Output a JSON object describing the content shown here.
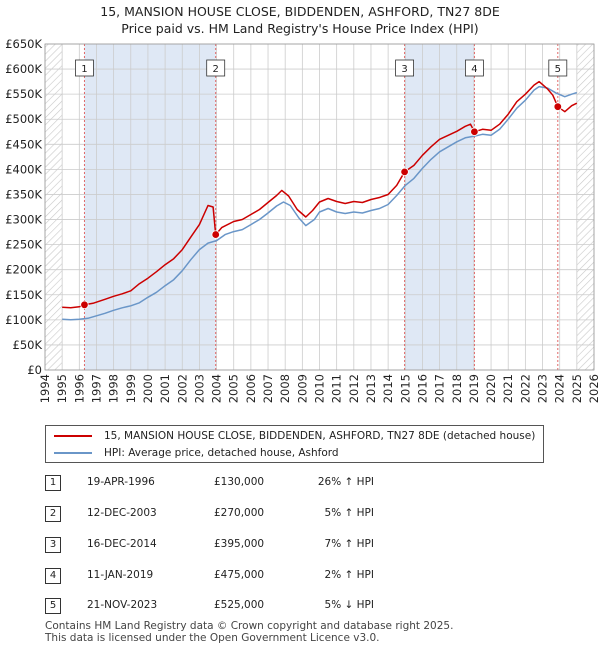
{
  "colors": {
    "property": "#cc0000",
    "hpi": "#6a96c8",
    "shade": "#dfe8f5",
    "grid": "#cccccc",
    "marker_line": "#e06666"
  },
  "title": {
    "line1": "15, MANSION HOUSE CLOSE, BIDDENDEN, ASHFORD, TN27 8DE",
    "line2": "Price paid vs. HM Land Registry's House Price Index (HPI)"
  },
  "chart_data": {
    "type": "line",
    "title": "15, MANSION HOUSE CLOSE, BIDDENDEN, ASHFORD, TN27 8DE",
    "subtitle": "Price paid vs. HM Land Registry's House Price Index (HPI)",
    "xlim": [
      1994,
      2026
    ],
    "ylim": [
      0,
      650000
    ],
    "grid": true,
    "x_ticks": [
      "1994",
      "1995",
      "1996",
      "1997",
      "1998",
      "1999",
      "2000",
      "2001",
      "2002",
      "2003",
      "2004",
      "2005",
      "2006",
      "2007",
      "2008",
      "2009",
      "2010",
      "2011",
      "2012",
      "2013",
      "2014",
      "2015",
      "2016",
      "2017",
      "2018",
      "2019",
      "2020",
      "2021",
      "2022",
      "2023",
      "2024",
      "2025",
      "2026"
    ],
    "y_ticks": [
      {
        "value": 0,
        "label": "£0"
      },
      {
        "value": 50000,
        "label": "£50K"
      },
      {
        "value": 100000,
        "label": "£100K"
      },
      {
        "value": 150000,
        "label": "£150K"
      },
      {
        "value": 200000,
        "label": "£200K"
      },
      {
        "value": 250000,
        "label": "£250K"
      },
      {
        "value": 300000,
        "label": "£300K"
      },
      {
        "value": 350000,
        "label": "£350K"
      },
      {
        "value": 400000,
        "label": "£400K"
      },
      {
        "value": 450000,
        "label": "£450K"
      },
      {
        "value": 500000,
        "label": "£500K"
      },
      {
        "value": 550000,
        "label": "£550K"
      },
      {
        "value": 600000,
        "label": "£600K"
      },
      {
        "value": 650000,
        "label": "£650K"
      }
    ],
    "legend_position": "below chart",
    "series": [
      {
        "name": "15, MANSION HOUSE CLOSE, BIDDENDEN, ASHFORD, TN27 8DE (detached house)",
        "points": [
          [
            1995.0,
            125000
          ],
          [
            1995.5,
            124000
          ],
          [
            1996.0,
            126000
          ],
          [
            1996.3,
            130000
          ],
          [
            1996.8,
            133000
          ],
          [
            1997.5,
            141000
          ],
          [
            1998.0,
            147000
          ],
          [
            1998.5,
            152000
          ],
          [
            1999.0,
            158000
          ],
          [
            1999.5,
            172000
          ],
          [
            2000.0,
            183000
          ],
          [
            2000.5,
            196000
          ],
          [
            2001.0,
            210000
          ],
          [
            2001.5,
            222000
          ],
          [
            2002.0,
            240000
          ],
          [
            2002.5,
            265000
          ],
          [
            2003.0,
            290000
          ],
          [
            2003.5,
            328000
          ],
          [
            2003.8,
            325000
          ],
          [
            2003.95,
            270000
          ],
          [
            2004.3,
            284000
          ],
          [
            2005.0,
            296000
          ],
          [
            2005.5,
            300000
          ],
          [
            2006.0,
            310000
          ],
          [
            2006.5,
            320000
          ],
          [
            2007.0,
            334000
          ],
          [
            2007.5,
            348000
          ],
          [
            2007.8,
            358000
          ],
          [
            2008.2,
            347000
          ],
          [
            2008.7,
            320000
          ],
          [
            2009.2,
            305000
          ],
          [
            2009.6,
            318000
          ],
          [
            2010.0,
            335000
          ],
          [
            2010.5,
            342000
          ],
          [
            2011.0,
            336000
          ],
          [
            2011.5,
            332000
          ],
          [
            2012.0,
            336000
          ],
          [
            2012.5,
            334000
          ],
          [
            2013.0,
            340000
          ],
          [
            2013.5,
            344000
          ],
          [
            2014.0,
            350000
          ],
          [
            2014.5,
            368000
          ],
          [
            2014.96,
            395000
          ],
          [
            2015.5,
            408000
          ],
          [
            2016.0,
            428000
          ],
          [
            2016.5,
            445000
          ],
          [
            2017.0,
            460000
          ],
          [
            2017.5,
            468000
          ],
          [
            2018.0,
            476000
          ],
          [
            2018.5,
            486000
          ],
          [
            2018.8,
            490000
          ],
          [
            2019.03,
            475000
          ],
          [
            2019.5,
            480000
          ],
          [
            2020.0,
            478000
          ],
          [
            2020.5,
            490000
          ],
          [
            2021.0,
            510000
          ],
          [
            2021.5,
            535000
          ],
          [
            2022.0,
            550000
          ],
          [
            2022.5,
            568000
          ],
          [
            2022.8,
            575000
          ],
          [
            2023.3,
            560000
          ],
          [
            2023.6,
            548000
          ],
          [
            2023.89,
            525000
          ],
          [
            2024.3,
            515000
          ],
          [
            2024.7,
            527000
          ],
          [
            2025.0,
            532000
          ]
        ]
      },
      {
        "name": "HPI: Average price, detached house, Ashford",
        "points": [
          [
            1995.0,
            101000
          ],
          [
            1995.5,
            100000
          ],
          [
            1996.0,
            101000
          ],
          [
            1996.5,
            103000
          ],
          [
            1997.0,
            108000
          ],
          [
            1997.5,
            113000
          ],
          [
            1998.0,
            119000
          ],
          [
            1998.5,
            124000
          ],
          [
            1999.0,
            128000
          ],
          [
            1999.5,
            134000
          ],
          [
            2000.0,
            145000
          ],
          [
            2000.5,
            155000
          ],
          [
            2001.0,
            168000
          ],
          [
            2001.5,
            180000
          ],
          [
            2002.0,
            198000
          ],
          [
            2002.5,
            220000
          ],
          [
            2003.0,
            240000
          ],
          [
            2003.5,
            253000
          ],
          [
            2004.0,
            258000
          ],
          [
            2004.5,
            270000
          ],
          [
            2005.0,
            276000
          ],
          [
            2005.5,
            280000
          ],
          [
            2006.0,
            290000
          ],
          [
            2006.5,
            300000
          ],
          [
            2007.0,
            313000
          ],
          [
            2007.5,
            327000
          ],
          [
            2007.9,
            335000
          ],
          [
            2008.3,
            328000
          ],
          [
            2008.8,
            303000
          ],
          [
            2009.2,
            288000
          ],
          [
            2009.7,
            300000
          ],
          [
            2010.0,
            315000
          ],
          [
            2010.5,
            322000
          ],
          [
            2011.0,
            315000
          ],
          [
            2011.5,
            312000
          ],
          [
            2012.0,
            315000
          ],
          [
            2012.5,
            313000
          ],
          [
            2013.0,
            318000
          ],
          [
            2013.5,
            322000
          ],
          [
            2014.0,
            330000
          ],
          [
            2014.5,
            348000
          ],
          [
            2015.0,
            368000
          ],
          [
            2015.5,
            382000
          ],
          [
            2016.0,
            402000
          ],
          [
            2016.5,
            420000
          ],
          [
            2017.0,
            435000
          ],
          [
            2017.5,
            445000
          ],
          [
            2018.0,
            455000
          ],
          [
            2018.5,
            463000
          ],
          [
            2019.0,
            466000
          ],
          [
            2019.5,
            470000
          ],
          [
            2020.0,
            468000
          ],
          [
            2020.5,
            480000
          ],
          [
            2021.0,
            500000
          ],
          [
            2021.5,
            522000
          ],
          [
            2022.0,
            538000
          ],
          [
            2022.5,
            558000
          ],
          [
            2022.8,
            565000
          ],
          [
            2023.3,
            562000
          ],
          [
            2023.8,
            552000
          ],
          [
            2024.3,
            545000
          ],
          [
            2024.7,
            550000
          ],
          [
            2025.0,
            553000
          ]
        ]
      }
    ],
    "transactions": [
      {
        "id": "1",
        "x": 1996.3,
        "value": 130000
      },
      {
        "id": "2",
        "x": 2003.95,
        "value": 270000
      },
      {
        "id": "3",
        "x": 2014.96,
        "value": 395000
      },
      {
        "id": "4",
        "x": 2019.03,
        "value": 475000
      },
      {
        "id": "5",
        "x": 2023.89,
        "value": 525000
      }
    ],
    "hatched_regions": [
      [
        1994,
        1995
      ],
      [
        2025,
        2026
      ]
    ]
  },
  "legend": {
    "property_label": "15, MANSION HOUSE CLOSE, BIDDENDEN, ASHFORD, TN27 8DE (detached house)",
    "hpi_label": "HPI: Average price, detached house, Ashford"
  },
  "table": [
    {
      "num": "1",
      "date": "19-APR-1996",
      "price": "£130,000",
      "hpi": "26% ↑ HPI"
    },
    {
      "num": "2",
      "date": "12-DEC-2003",
      "price": "£270,000",
      "hpi": "5% ↑ HPI"
    },
    {
      "num": "3",
      "date": "16-DEC-2014",
      "price": "£395,000",
      "hpi": "7% ↑ HPI"
    },
    {
      "num": "4",
      "date": "11-JAN-2019",
      "price": "£475,000",
      "hpi": "2% ↑ HPI"
    },
    {
      "num": "5",
      "date": "21-NOV-2023",
      "price": "£525,000",
      "hpi": "5% ↓ HPI"
    }
  ],
  "footer": {
    "line1": "Contains HM Land Registry data © Crown copyright and database right 2025.",
    "line2": "This data is licensed under the Open Government Licence v3.0."
  }
}
